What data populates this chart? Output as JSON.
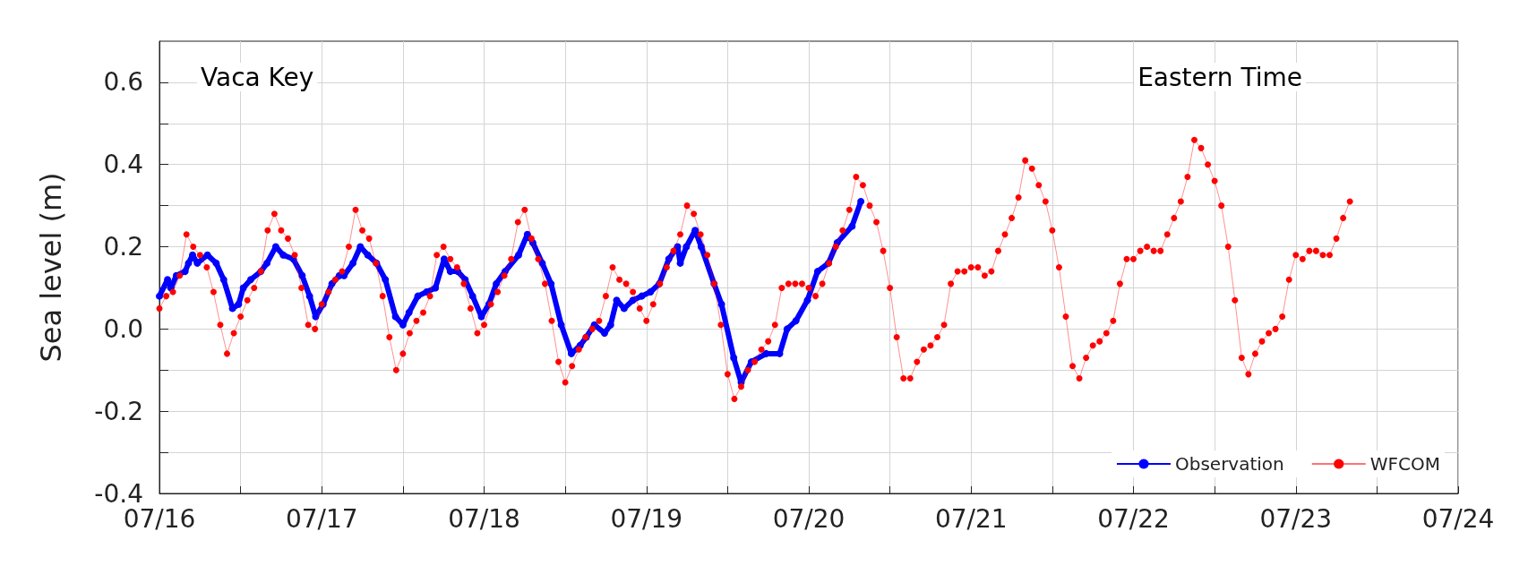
{
  "chart_data": {
    "type": "line",
    "ylabel": "Sea level (m)",
    "annotations": [
      "Vaca Key",
      "Eastern Time"
    ],
    "xlim": [
      "--07-16",
      "--07-24"
    ],
    "xticks": [
      {
        "value": "--07-16",
        "label": "07/16"
      },
      {
        "value": "--07-16T12:00",
        "label": null
      },
      {
        "value": "--07-17",
        "label": "07/17"
      },
      {
        "value": "--07-17T12:00",
        "label": null
      },
      {
        "value": "--07-18",
        "label": "07/18"
      },
      {
        "value": "--07-18T12:00",
        "label": null
      },
      {
        "value": "--07-19",
        "label": "07/19"
      },
      {
        "value": "--07-19T12:00",
        "label": null
      },
      {
        "value": "--07-20",
        "label": "07/20"
      },
      {
        "value": "--07-20T12:00",
        "label": null
      },
      {
        "value": "--07-21",
        "label": "07/21"
      },
      {
        "value": "--07-21T12:00",
        "label": null
      },
      {
        "value": "--07-22",
        "label": "07/22"
      },
      {
        "value": "--07-22T12:00",
        "label": null
      },
      {
        "value": "--07-23",
        "label": "07/23"
      },
      {
        "value": "--07-23T12:00",
        "label": null
      },
      {
        "value": "--07-24",
        "label": "07/24"
      }
    ],
    "ylim": [
      -0.4,
      0.7
    ],
    "yticks": [
      -0.4,
      {
        "value": -0.3,
        "label": null
      },
      -0.2,
      {
        "value": -0.1,
        "label": null
      },
      {
        "value": 0,
        "label": "0.0"
      },
      {
        "value": 0.1,
        "label": null
      },
      0.2,
      {
        "value": 0.3,
        "label": null
      },
      0.4,
      {
        "value": 0.5,
        "label": null
      },
      0.6
    ],
    "grid": true,
    "legend": "bottom right",
    "marker": "circle",
    "line_style": "solid",
    "series": [
      {
        "name": "Observation",
        "color": "#0000ff",
        "x": [
          "--07-16T00:00",
          "--07-16T01:12",
          "--07-16T01:42",
          "--07-16T02:30",
          "--07-16T03:48",
          "--07-16T04:18",
          "--07-16T04:54",
          "--07-16T05:36",
          "--07-16T07:06",
          "--07-16T08:24",
          "--07-16T09:30",
          "--07-16T10:48",
          "--07-16T11:42",
          "--07-16T12:24",
          "--07-16T13:30",
          "--07-16T15:00",
          "--07-16T15:54",
          "--07-16T17:12",
          "--07-16T18:18",
          "--07-16T19:48",
          "--07-16T21:06",
          "--07-16T22:12",
          "--07-16T23:06",
          "--07-17T00:12",
          "--07-17T01:30",
          "--07-17T02:36",
          "--07-17T03:18",
          "--07-17T04:36",
          "--07-17T05:42",
          "--07-17T06:48",
          "--07-17T08:06",
          "--07-17T09:24",
          "--07-17T10:54",
          "--07-17T12:00",
          "--07-17T12:54",
          "--07-17T14:12",
          "--07-17T15:30",
          "--07-17T16:48",
          "--07-17T18:06",
          "--07-17T19:00",
          "--07-17T20:06",
          "--07-17T21:12",
          "--07-17T22:18",
          "--07-17T23:36",
          "--07-18T00:42",
          "--07-18T01:48",
          "--07-18T03:06",
          "--07-18T05:06",
          "--07-18T06:24",
          "--07-18T07:12",
          "--07-18T08:36",
          "--07-18T09:54",
          "--07-18T11:24",
          "--07-18T12:54",
          "--07-18T14:12",
          "--07-18T15:06",
          "--07-18T16:18",
          "--07-18T17:48",
          "--07-18T18:42",
          "--07-18T19:36",
          "--07-18T20:42",
          "--07-18T22:00",
          "--07-18T23:18",
          "--07-19T00:36",
          "--07-19T01:54",
          "--07-19T03:18",
          "--07-19T04:36",
          "--07-19T05:00",
          "--07-19T05:54",
          "--07-19T07:12",
          "--07-19T08:06",
          "--07-19T10:00",
          "--07-19T11:06",
          "--07-19T12:54",
          "--07-19T14:00",
          "--07-19T15:30",
          "--07-19T17:42",
          "--07-19T19:42",
          "--07-19T20:48",
          "--07-19T22:06",
          "--07-19T23:48",
          "--07-20T01:18",
          "--07-20T02:54",
          "--07-20T04:12",
          "--07-20T06:24",
          "--07-20T07:42"
        ],
        "values": [
          0.08,
          0.12,
          0.1,
          0.13,
          0.14,
          0.16,
          0.18,
          0.16,
          0.18,
          0.16,
          0.12,
          0.05,
          0.06,
          0.1,
          0.12,
          0.14,
          0.16,
          0.2,
          0.18,
          0.17,
          0.13,
          0.08,
          0.03,
          0.06,
          0.11,
          0.13,
          0.13,
          0.16,
          0.2,
          0.18,
          0.16,
          0.12,
          0.03,
          0.01,
          0.04,
          0.08,
          0.09,
          0.1,
          0.17,
          0.14,
          0.14,
          0.12,
          0.08,
          0.03,
          0.06,
          0.11,
          0.14,
          0.18,
          0.23,
          0.21,
          0.16,
          0.11,
          0.01,
          -0.06,
          -0.04,
          -0.02,
          0.01,
          -0.01,
          0.01,
          0.07,
          0.05,
          0.07,
          0.08,
          0.09,
          0.11,
          0.17,
          0.2,
          0.16,
          0.2,
          0.24,
          0.2,
          0.11,
          0.06,
          -0.07,
          -0.13,
          -0.08,
          -0.06,
          -0.06,
          0.0,
          0.02,
          0.07,
          0.14,
          0.16,
          0.21,
          0.25,
          0.31
        ]
      },
      {
        "name": "WFCOM",
        "color": "#ff0000",
        "x": [
          "--07-16T00:00",
          "--07-16T01:00",
          "--07-16T02:00",
          "--07-16T03:00",
          "--07-16T04:00",
          "--07-16T05:00",
          "--07-16T06:00",
          "--07-16T07:00",
          "--07-16T08:00",
          "--07-16T09:00",
          "--07-16T10:00",
          "--07-16T11:00",
          "--07-16T12:00",
          "--07-16T13:00",
          "--07-16T14:00",
          "--07-16T15:00",
          "--07-16T16:00",
          "--07-16T17:00",
          "--07-16T18:00",
          "--07-16T19:00",
          "--07-16T20:00",
          "--07-16T21:00",
          "--07-16T22:00",
          "--07-16T23:00",
          "--07-17T00:00",
          "--07-17T01:00",
          "--07-17T02:00",
          "--07-17T03:00",
          "--07-17T04:00",
          "--07-17T05:00",
          "--07-17T06:00",
          "--07-17T07:00",
          "--07-17T08:00",
          "--07-17T09:00",
          "--07-17T10:00",
          "--07-17T11:00",
          "--07-17T12:00",
          "--07-17T13:00",
          "--07-17T14:00",
          "--07-17T15:00",
          "--07-17T16:00",
          "--07-17T17:00",
          "--07-17T18:00",
          "--07-17T19:00",
          "--07-17T20:00",
          "--07-17T21:00",
          "--07-17T22:00",
          "--07-17T23:00",
          "--07-18T00:00",
          "--07-18T01:00",
          "--07-18T02:00",
          "--07-18T03:00",
          "--07-18T04:00",
          "--07-18T05:00",
          "--07-18T06:00",
          "--07-18T07:00",
          "--07-18T08:00",
          "--07-18T09:00",
          "--07-18T10:00",
          "--07-18T11:00",
          "--07-18T12:00",
          "--07-18T13:00",
          "--07-18T14:00",
          "--07-18T15:00",
          "--07-18T16:00",
          "--07-18T17:00",
          "--07-18T18:00",
          "--07-18T19:00",
          "--07-18T20:00",
          "--07-18T21:00",
          "--07-18T22:00",
          "--07-18T23:00",
          "--07-19T00:00",
          "--07-19T01:00",
          "--07-19T02:00",
          "--07-19T03:00",
          "--07-19T04:00",
          "--07-19T05:00",
          "--07-19T06:00",
          "--07-19T07:00",
          "--07-19T08:00",
          "--07-19T09:00",
          "--07-19T10:00",
          "--07-19T11:00",
          "--07-19T12:00",
          "--07-19T13:00",
          "--07-19T14:00",
          "--07-19T15:00",
          "--07-19T16:00",
          "--07-19T17:00",
          "--07-19T18:00",
          "--07-19T19:00",
          "--07-19T20:00",
          "--07-19T21:00",
          "--07-19T22:00",
          "--07-19T23:00",
          "--07-20T00:00",
          "--07-20T01:00",
          "--07-20T02:00",
          "--07-20T03:00",
          "--07-20T04:00",
          "--07-20T05:00",
          "--07-20T06:00",
          "--07-20T07:00",
          "--07-20T08:00",
          "--07-20T09:00",
          "--07-20T10:00",
          "--07-20T11:00",
          "--07-20T12:00",
          "--07-20T13:00",
          "--07-20T14:00",
          "--07-20T15:00",
          "--07-20T16:00",
          "--07-20T17:00",
          "--07-20T18:00",
          "--07-20T19:00",
          "--07-20T20:00",
          "--07-20T21:00",
          "--07-20T22:00",
          "--07-20T23:00",
          "--07-21T00:00",
          "--07-21T01:00",
          "--07-21T02:00",
          "--07-21T03:00",
          "--07-21T04:00",
          "--07-21T05:00",
          "--07-21T06:00",
          "--07-21T07:00",
          "--07-21T08:00",
          "--07-21T09:00",
          "--07-21T10:00",
          "--07-21T11:00",
          "--07-21T12:00",
          "--07-21T13:00",
          "--07-21T14:00",
          "--07-21T15:00",
          "--07-21T16:00",
          "--07-21T17:00",
          "--07-21T18:00",
          "--07-21T19:00",
          "--07-21T20:00",
          "--07-21T21:00",
          "--07-21T22:00",
          "--07-21T23:00",
          "--07-22T00:00",
          "--07-22T01:00",
          "--07-22T02:00",
          "--07-22T03:00",
          "--07-22T04:00",
          "--07-22T05:00",
          "--07-22T06:00",
          "--07-22T07:00",
          "--07-22T08:00",
          "--07-22T09:00",
          "--07-22T10:00",
          "--07-22T11:00",
          "--07-22T12:00",
          "--07-22T13:00",
          "--07-22T14:00",
          "--07-22T15:00",
          "--07-22T16:00",
          "--07-22T17:00",
          "--07-22T18:00",
          "--07-22T19:00",
          "--07-22T20:00",
          "--07-22T21:00",
          "--07-22T22:00",
          "--07-22T23:00",
          "--07-23T00:00",
          "--07-23T01:00",
          "--07-23T02:00",
          "--07-23T03:00",
          "--07-23T04:00",
          "--07-23T05:00",
          "--07-23T06:00",
          "--07-23T07:00",
          "--07-23T08:00"
        ],
        "values": [
          0.05,
          0.08,
          0.09,
          0.13,
          0.23,
          0.2,
          0.18,
          0.15,
          0.09,
          0.01,
          -0.06,
          -0.01,
          0.03,
          0.07,
          0.1,
          0.14,
          0.24,
          0.28,
          0.24,
          0.22,
          0.18,
          0.1,
          0.01,
          0.0,
          0.06,
          0.09,
          0.12,
          0.14,
          0.2,
          0.29,
          0.24,
          0.22,
          0.16,
          0.08,
          -0.02,
          -0.1,
          -0.06,
          -0.01,
          0.02,
          0.04,
          0.08,
          0.18,
          0.2,
          0.17,
          0.15,
          0.11,
          0.05,
          -0.01,
          0.01,
          0.06,
          0.09,
          0.13,
          0.17,
          0.26,
          0.29,
          0.22,
          0.17,
          0.11,
          0.02,
          -0.08,
          -0.13,
          -0.09,
          -0.05,
          -0.02,
          0.0,
          0.02,
          0.08,
          0.15,
          0.12,
          0.11,
          0.09,
          0.05,
          0.02,
          0.06,
          0.11,
          0.15,
          0.19,
          0.23,
          0.3,
          0.28,
          0.23,
          0.18,
          0.11,
          0.01,
          -0.11,
          -0.17,
          -0.14,
          -0.1,
          -0.08,
          -0.05,
          -0.03,
          0.01,
          0.1,
          0.11,
          0.11,
          0.11,
          0.1,
          0.08,
          0.11,
          0.16,
          0.2,
          0.24,
          0.29,
          0.37,
          0.35,
          0.3,
          0.26,
          0.19,
          0.1,
          -0.02,
          -0.12,
          -0.12,
          -0.08,
          -0.05,
          -0.04,
          -0.02,
          0.01,
          0.11,
          0.14,
          0.14,
          0.15,
          0.15,
          0.13,
          0.14,
          0.19,
          0.23,
          0.27,
          0.32,
          0.41,
          0.39,
          0.35,
          0.31,
          0.24,
          0.15,
          0.03,
          -0.09,
          -0.12,
          -0.07,
          -0.04,
          -0.03,
          -0.01,
          0.02,
          0.11,
          0.17,
          0.17,
          0.19,
          0.2,
          0.19,
          0.19,
          0.23,
          0.27,
          0.31,
          0.37,
          0.46,
          0.44,
          0.4,
          0.36,
          0.3,
          0.2,
          0.07,
          -0.07,
          -0.11,
          -0.06,
          -0.03,
          -0.01,
          0.0,
          0.03,
          0.12,
          0.18,
          0.17,
          0.19,
          0.19,
          0.18,
          0.18,
          0.22,
          0.27,
          0.31
        ]
      }
    ]
  }
}
